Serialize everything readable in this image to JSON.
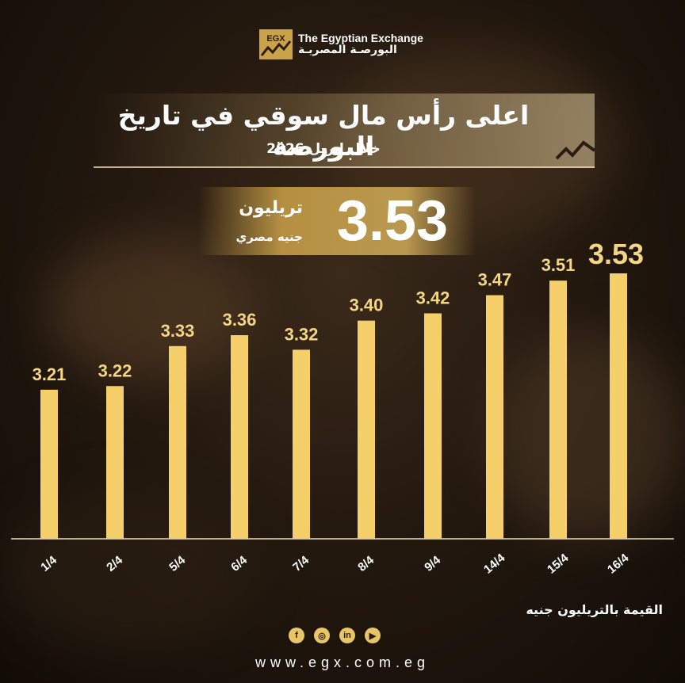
{
  "header": {
    "logo_en": "The Egyptian Exchange",
    "logo_ar": "البورصـة المصريـة",
    "logo_mark": "EGX"
  },
  "title": "اعلى رأس مال سوقي في تاريخ البورصة",
  "subtitle": "خلال إبريل 2026",
  "highlight": {
    "value": "3.53",
    "unit": "تريليون",
    "currency": "جنيه مصري"
  },
  "footer": {
    "website": "www.egx.com.eg",
    "socials": [
      "facebook-icon",
      "instagram-icon",
      "linkedin-icon",
      "youtube-icon"
    ]
  },
  "colors": {
    "bar": "#f4cf6a",
    "label": "#f3d585",
    "axis": "#e8dcc0"
  },
  "chart_data": {
    "type": "bar",
    "categories": [
      "1/4",
      "2/4",
      "5/4",
      "6/4",
      "7/4",
      "8/4",
      "9/4",
      "14/4",
      "15/4",
      "16/4"
    ],
    "values": [
      3.21,
      3.22,
      3.33,
      3.36,
      3.32,
      3.4,
      3.42,
      3.47,
      3.51,
      3.53
    ],
    "value_labels": [
      "3.21",
      "3.22",
      "3.33",
      "3.36",
      "3.32",
      "3.40",
      "3.42",
      "3.47",
      "3.51",
      "3.53"
    ],
    "ylabel": "القيمة بالتريليون جنيه",
    "title": "",
    "xlabel": "",
    "ylim": [
      2.8,
      3.53
    ]
  }
}
